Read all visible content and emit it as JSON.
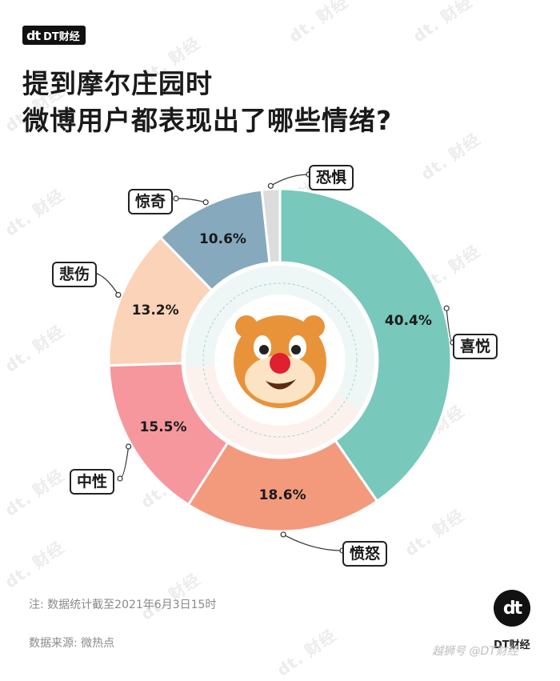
{
  "brand": {
    "logo": "dt",
    "name": "DT财经"
  },
  "title_lines": [
    "提到摩尔庄园时",
    "微博用户都表现出了哪些情绪?"
  ],
  "chart_data": {
    "type": "pie",
    "variant": "donut",
    "title": "提到摩尔庄园时 微博用户都表现出了哪些情绪?",
    "slices": [
      {
        "label": "喜悦",
        "value": 40.4,
        "display": "40.4%",
        "color": "#78c8bb"
      },
      {
        "label": "愤怒",
        "value": 18.6,
        "display": "18.6%",
        "color": "#f39a7d"
      },
      {
        "label": "中性",
        "value": 15.5,
        "display": "15.5%",
        "color": "#f5979d"
      },
      {
        "label": "悲伤",
        "value": 13.2,
        "display": "13.2%",
        "color": "#fad3b9"
      },
      {
        "label": "惊奇",
        "value": 10.6,
        "display": "10.6%",
        "color": "#86a9bd"
      },
      {
        "label": "恐惧",
        "value": 1.7,
        "display": "",
        "color": "#dcdcdc"
      }
    ],
    "legend": "none"
  },
  "notes": {
    "note": "注: 数据统计截至2021年6月3日15时",
    "source": "数据来源: 微热点"
  },
  "footer": {
    "badge": "dt",
    "brand": "DT财经",
    "platform_watermark": "越狮号 @DT财经"
  },
  "watermark_text": "dt. 财经",
  "icon": "mole-mascot-face"
}
